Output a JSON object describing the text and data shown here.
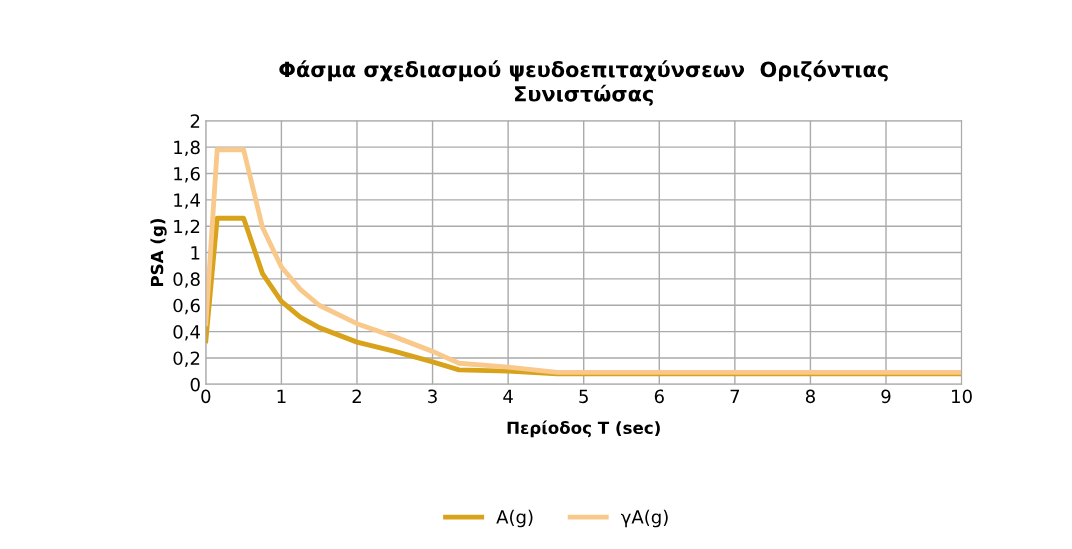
{
  "chart_data": {
    "type": "line",
    "title": "Φάσμα σχεδιασμού ψευδοεπιταχύνσεων  Οριζόντιας\nΣυνιστώσας",
    "xlabel": "Περίοδος T (sec)",
    "ylabel": "PSA (g)",
    "x": [
      0,
      0.15,
      0.5,
      0.75,
      1.0,
      1.25,
      1.5,
      2.0,
      2.5,
      3.0,
      3.35,
      4.0,
      4.65,
      10
    ],
    "series": [
      {
        "name": "A(g)",
        "color": "#d9a21b",
        "values": [
          0.33,
          1.26,
          1.26,
          0.84,
          0.63,
          0.51,
          0.43,
          0.32,
          0.25,
          0.17,
          0.11,
          0.1,
          0.08,
          0.08
        ]
      },
      {
        "name": "γA(g)",
        "color": "#f9c98c",
        "values": [
          0.46,
          1.78,
          1.78,
          1.19,
          0.89,
          0.72,
          0.6,
          0.46,
          0.36,
          0.25,
          0.16,
          0.13,
          0.09,
          0.09
        ]
      }
    ],
    "xlim": [
      0,
      10
    ],
    "xticks": [
      0,
      1,
      2,
      3,
      4,
      5,
      6,
      7,
      8,
      9,
      10
    ],
    "ylim": [
      0,
      2
    ],
    "yticks": [
      {
        "value": 0,
        "label": "0"
      },
      {
        "value": 0.2,
        "label": "0,2"
      },
      {
        "value": 0.4,
        "label": "0,4"
      },
      {
        "value": 0.6,
        "label": "0,6"
      },
      {
        "value": 0.8,
        "label": "0,8"
      },
      {
        "value": 1,
        "label": "1"
      },
      {
        "value": 1.2,
        "label": "1,2"
      },
      {
        "value": 1.4,
        "label": "1,4"
      },
      {
        "value": 1.6,
        "label": "1,6"
      },
      {
        "value": 1.8,
        "label": "1,8"
      },
      {
        "value": 2,
        "label": "2"
      }
    ],
    "grid": true,
    "legend": "bottom",
    "marker": "none",
    "line_style": "solid"
  }
}
